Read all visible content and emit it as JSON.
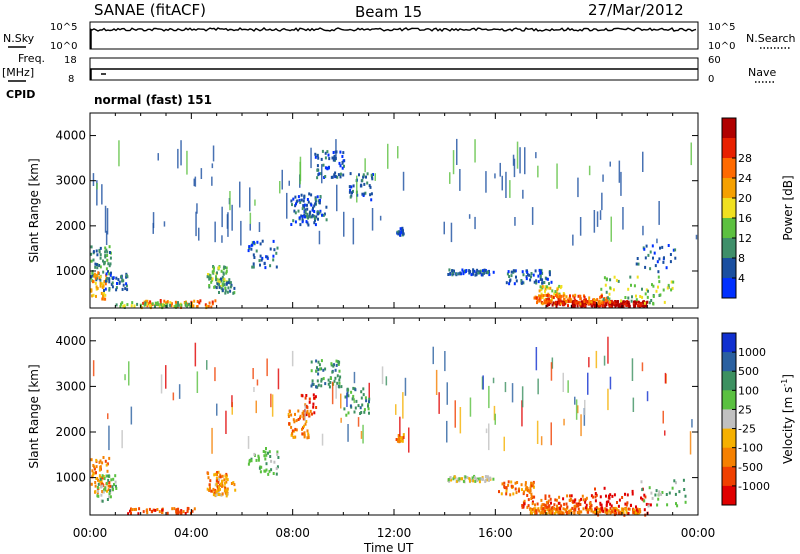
{
  "header": {
    "title": "SANAE (fitACF)",
    "beam": "Beam 15",
    "date": "27/Mar/2012"
  },
  "top_panels": {
    "nsky_label": "N.Sky",
    "nsearch_label": "N.Search",
    "nsky_ticks": [
      "10^5",
      "10^0"
    ],
    "nsearch_ticks": [
      "10^5",
      "10^0"
    ],
    "freq_label": "Freq.",
    "freq_unit": "[MHz]",
    "freq_ticks": [
      "18",
      "8"
    ],
    "nave_label": "Nave",
    "nave_ticks": [
      "60",
      "0"
    ],
    "cpid_label": "CPID",
    "cpid_value": "normal (fast) 151"
  },
  "chart_data": [
    {
      "type": "heatmap",
      "parameter": "Power",
      "ylabel": "Slant Range [km]",
      "xlabel": "Time UT",
      "ylim": [
        180,
        4500
      ],
      "y_ticks": [
        1000,
        2000,
        3000,
        4000
      ],
      "x_ticks": [
        "00:00",
        "04:00",
        "08:00",
        "12:00",
        "16:00",
        "20:00",
        "00:00"
      ],
      "xlim_hours": [
        0,
        24
      ],
      "colorbar": {
        "label": "Power [dB]",
        "ticks": [
          "4",
          "8",
          "12",
          "16",
          "20",
          "24",
          "28"
        ],
        "colors": [
          "#0030ff",
          "#1a4fa0",
          "#3f8f6a",
          "#5cc040",
          "#f0e020",
          "#f5a000",
          "#ff6a00",
          "#e82000",
          "#b00000"
        ],
        "range": [
          0,
          30
        ]
      }
    },
    {
      "type": "heatmap",
      "parameter": "Velocity",
      "ylabel": "Slant Range [km]",
      "xlabel": "Time UT",
      "ylim": [
        180,
        4500
      ],
      "y_ticks": [
        1000,
        2000,
        3000,
        4000
      ],
      "x_ticks": [
        "00:00",
        "04:00",
        "08:00",
        "12:00",
        "16:00",
        "20:00",
        "00:00"
      ],
      "xlim_hours": [
        0,
        24
      ],
      "colorbar": {
        "label": "Velocity [m s",
        "label_superscript": "-1",
        "label_close": "]",
        "ticks": [
          "1000",
          "500",
          "100",
          "25",
          "-25",
          "-100",
          "-500",
          "-1000"
        ],
        "colors": [
          "#1030d0",
          "#2a60a0",
          "#3c9060",
          "#5ac040",
          "#c0c0c0",
          "#f5b000",
          "#f58000",
          "#f04000",
          "#e00000"
        ]
      }
    }
  ],
  "x_axis_label": "Time UT"
}
